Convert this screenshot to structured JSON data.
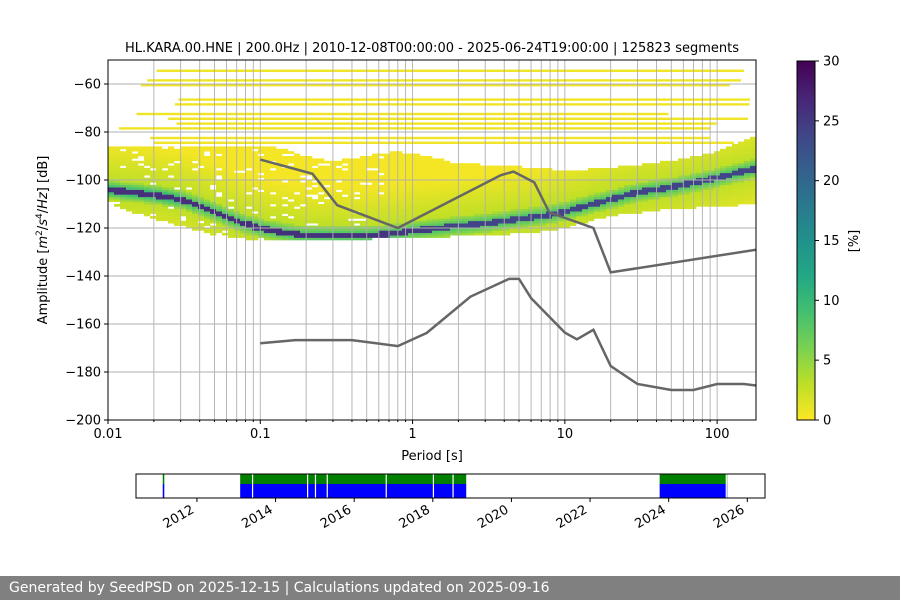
{
  "title": "HL.KARA.00.HNE | 200.0Hz | 2010-12-08T00:00:00 - 2025-06-24T19:00:00 | 125823 segments",
  "footer": "Generated by SeedPSD on 2025-12-15 | Calculations updated on 2025-09-16",
  "chart_data": [
    {
      "type": "heatmap",
      "title": "HL.KARA.00.HNE | 200.0Hz | 2010-12-08T00:00:00 - 2025-06-24T19:00:00 | 125823 segments",
      "xlabel": "Period [s]",
      "ylabel": "Amplitude [m²/s⁴/Hz] [dB]",
      "x_scale": "log",
      "xlim": [
        0.01,
        180
      ],
      "ylim": [
        -200,
        -50
      ],
      "x_ticks": [
        0.01,
        0.1,
        1,
        10,
        100
      ],
      "x_tick_labels": [
        "0.01",
        "0.1",
        "1",
        "10",
        "100"
      ],
      "y_ticks": [
        -200,
        -180,
        -160,
        -140,
        -120,
        -100,
        -80,
        -60
      ],
      "grid": true,
      "colorbar": {
        "label": "[%]",
        "range": [
          0,
          30
        ],
        "ticks": [
          0,
          5,
          10,
          15,
          20,
          25,
          30
        ],
        "colormap": "viridis_r"
      },
      "mode_curve": {
        "x": [
          0.01,
          0.02,
          0.03,
          0.05,
          0.07,
          0.1,
          0.15,
          0.2,
          0.3,
          0.5,
          0.8,
          1.0,
          1.5,
          2,
          3,
          4,
          5,
          7,
          10,
          15,
          20,
          30,
          50,
          100,
          180
        ],
        "y": [
          -104,
          -106,
          -108,
          -113,
          -117,
          -120,
          -122,
          -123,
          -123,
          -123,
          -122,
          -121,
          -120,
          -119,
          -118,
          -117,
          -116,
          -115,
          -113,
          -110,
          -108,
          -105,
          -103,
          -99,
          -95
        ]
      },
      "upper_envelope": {
        "x": [
          0.02,
          0.05,
          0.1,
          0.15,
          0.2,
          0.3,
          0.5,
          0.8,
          1.2,
          2,
          4,
          7,
          10,
          20,
          50,
          100,
          180
        ],
        "y": [
          -86,
          -86,
          -86,
          -87,
          -90,
          -92,
          -90,
          -88,
          -90,
          -93,
          -94,
          -95,
          -96,
          -95,
          -92,
          -88,
          -82
        ]
      },
      "lower_envelope": {
        "x": [
          0.01,
          0.02,
          0.05,
          0.1,
          0.3,
          1,
          3,
          6,
          10,
          20,
          50,
          100,
          180
        ],
        "y": [
          -110,
          -116,
          -123,
          -125,
          -125,
          -124,
          -123,
          -122,
          -120,
          -115,
          -112,
          -111,
          -110
        ],
        "upper_cutoff_period": 0.72
      },
      "series": [
        {
          "name": "",
          "x": [
            0.1,
            0.22,
            0.32,
            0.8,
            3.8,
            4.6,
            6.3,
            7.9,
            15.4,
            20,
            200
          ],
          "y": [
            -91.5,
            -97.4,
            -110.5,
            -120,
            -98,
            -96.5,
            -101,
            -113.5,
            -120,
            -138.5,
            -128.6
          ]
        },
        {
          "name": "",
          "x": [
            0.1,
            0.17,
            0.4,
            0.8,
            1.24,
            2.4,
            4.3,
            5.0,
            6.0,
            10,
            12,
            15.4,
            20,
            30,
            50,
            70,
            100,
            150,
            200
          ],
          "y": [
            -168,
            -166.7,
            -166.7,
            -169.2,
            -163.7,
            -148.6,
            -141.2,
            -141.2,
            -149.2,
            -163.6,
            -166.4,
            -162.4,
            -177.5,
            -185,
            -187.5,
            -187.5,
            -185,
            -185,
            -186
          ]
        }
      ]
    },
    {
      "type": "bar",
      "xlabel": "",
      "ylabel": "",
      "xlim": [
        2010.45,
        2026.45
      ],
      "x_ticks": [
        2012,
        2014,
        2016,
        2018,
        2020,
        2022,
        2024,
        2026
      ],
      "x_tick_labels": [
        "2012",
        "2014",
        "2016",
        "2018",
        "2020",
        "2022",
        "2024",
        "2026"
      ],
      "series": [
        {
          "name": "",
          "color": "#008000",
          "intervals": [
            [
              2011.13,
              2011.17
            ],
            [
              2013.1,
              2018.85
            ],
            [
              2023.77,
              2025.49
            ]
          ]
        },
        {
          "name": "",
          "color": "#0000ff",
          "intervals": [
            [
              2011.13,
              2011.17
            ],
            [
              2013.1,
              2018.85
            ],
            [
              2023.77,
              2025.49
            ]
          ]
        }
      ],
      "gaps": [
        2013.4,
        2014.8,
        2015.0,
        2015.3,
        2016.8,
        2018.0,
        2018.5,
        2025.45
      ]
    }
  ]
}
